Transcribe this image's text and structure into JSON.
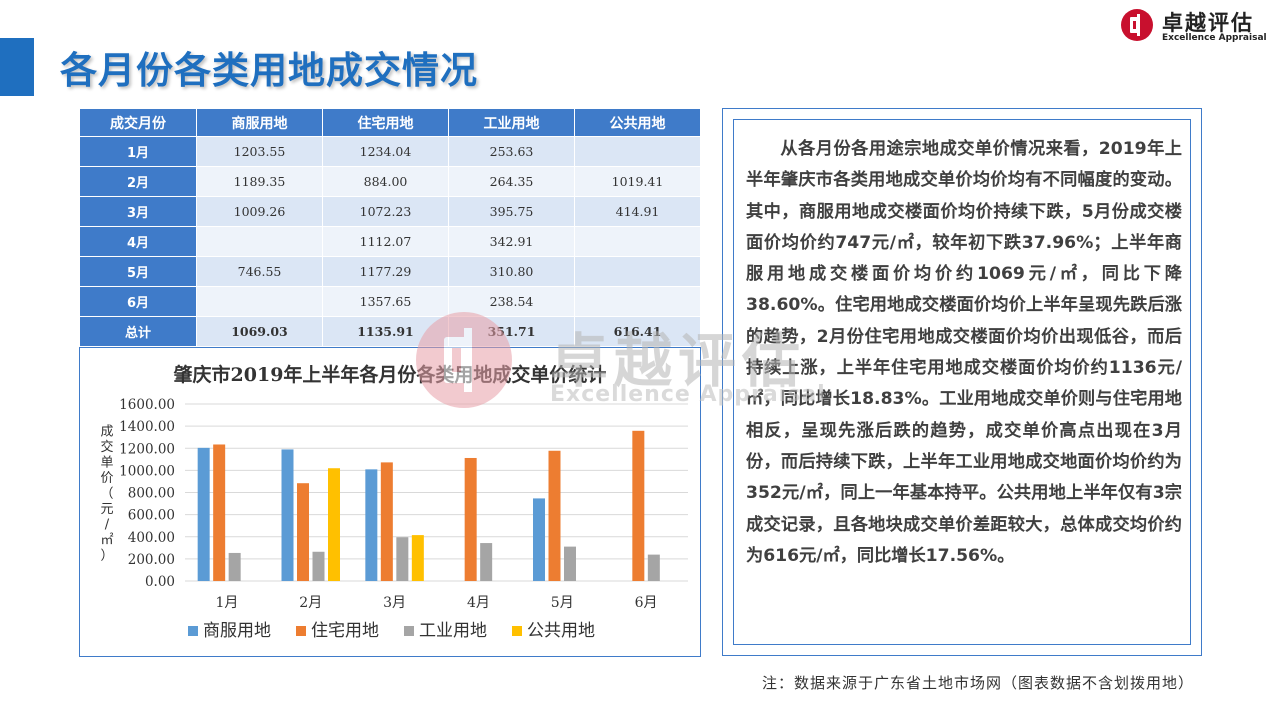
{
  "page": {
    "title": "各月份各类用地成交情况",
    "footnote": "注：数据来源于广东省土地市场网（图表数据不含划拨用地）"
  },
  "brand": {
    "name_cn": "卓越评估",
    "name_en": "Excellence Appraisal",
    "color": "#c8102e"
  },
  "watermark": {
    "name_cn": "卓越评估",
    "name_en": "Excellence Appraisal"
  },
  "table": {
    "headers": [
      "成交月份",
      "商服用地",
      "住宅用地",
      "工业用地",
      "公共用地"
    ],
    "rows": [
      {
        "month": "1月",
        "c1": "1203.55",
        "c2": "1234.04",
        "c3": "253.63",
        "c4": ""
      },
      {
        "month": "2月",
        "c1": "1189.35",
        "c2": "884.00",
        "c3": "264.35",
        "c4": "1019.41"
      },
      {
        "month": "3月",
        "c1": "1009.26",
        "c2": "1072.23",
        "c3": "395.75",
        "c4": "414.91"
      },
      {
        "month": "4月",
        "c1": "",
        "c2": "1112.07",
        "c3": "342.91",
        "c4": ""
      },
      {
        "month": "5月",
        "c1": "746.55",
        "c2": "1177.29",
        "c3": "310.80",
        "c4": ""
      },
      {
        "month": "6月",
        "c1": "",
        "c2": "1357.65",
        "c3": "238.54",
        "c4": ""
      }
    ],
    "total": {
      "month": "总计",
      "c1": "1069.03",
      "c2": "1135.91",
      "c3": "351.71",
      "c4": "616.41"
    }
  },
  "chart_data": {
    "type": "bar",
    "title": "肇庆市2019年上半年各月份各类用地成交单价统计",
    "ylabel": "成交单价（元/㎡）",
    "xlabel": "",
    "categories": [
      "1月",
      "2月",
      "3月",
      "4月",
      "5月",
      "6月"
    ],
    "ylim": [
      0,
      1600
    ],
    "yticks": [
      "0.00",
      "200.00",
      "400.00",
      "600.00",
      "800.00",
      "1000.00",
      "1200.00",
      "1400.00",
      "1600.00"
    ],
    "grid": true,
    "legend": "bottom",
    "series": [
      {
        "name": "商服用地",
        "color": "#5b9bd5",
        "values": [
          1203.55,
          1189.35,
          1009.26,
          null,
          746.55,
          null
        ]
      },
      {
        "name": "住宅用地",
        "color": "#ed7d31",
        "values": [
          1234.04,
          884.0,
          1072.23,
          1112.07,
          1177.29,
          1357.65
        ]
      },
      {
        "name": "工业用地",
        "color": "#a5a5a5",
        "values": [
          253.63,
          264.35,
          395.75,
          342.91,
          310.8,
          238.54
        ]
      },
      {
        "name": "公共用地",
        "color": "#ffc000",
        "values": [
          null,
          1019.41,
          414.91,
          null,
          null,
          null
        ]
      }
    ]
  },
  "analysis": {
    "text": "从各月份各用途宗地成交单价情况来看，2019年上半年肇庆市各类用地成交单价均价均有不同幅度的变动。其中，商服用地成交楼面价均价持续下跌，5月份成交楼面价均价约747元/㎡，较年初下跌37.96%；上半年商服用地成交楼面价均价约1069元/㎡，同比下降38.60%。住宅用地成交楼面价均价上半年呈现先跌后涨的趋势，2月份住宅用地成交楼面价均价出现低谷，而后持续上涨，上半年住宅用地成交楼面价均价约1136元/㎡，同比增长18.83%。工业用地成交单价则与住宅用地相反，呈现先涨后跌的趋势，成交单价高点出现在3月份，而后持续下跌，上半年工业用地成交地面价均价约为352元/㎡，同上一年基本持平。公共用地上半年仅有3宗成交记录，且各地块成交单价差距较大，总体成交均价约为616元/㎡，同比增长17.56%。"
  }
}
